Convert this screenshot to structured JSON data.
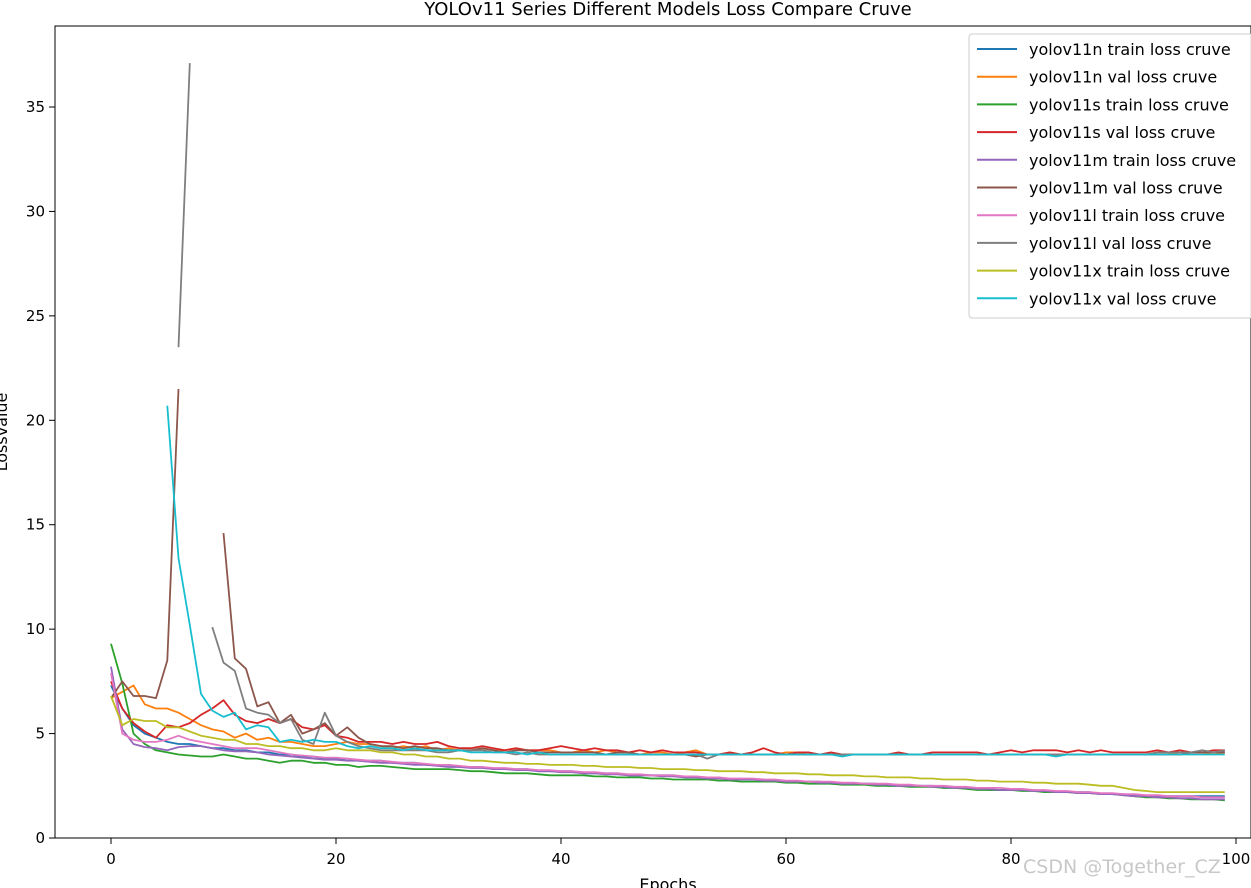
{
  "chart_data": {
    "type": "line",
    "title": "YOLOv11 Series Different Models Loss Compare Cruve",
    "xlabel": "Epochs",
    "ylabel": "Lossvalue",
    "xlim": [
      -4.5,
      100
    ],
    "ylim": [
      0,
      39
    ],
    "xticks": [
      0,
      20,
      40,
      60,
      80,
      100
    ],
    "yticks": [
      0,
      5,
      10,
      15,
      20,
      25,
      30,
      35
    ],
    "grid": false,
    "legend": "top-right",
    "series": [
      {
        "name": "yolov11n train loss cruve",
        "color": "#1f77b4",
        "values": [
          7.3,
          6.2,
          5.4,
          5.0,
          4.8,
          4.6,
          4.5,
          4.5,
          4.4,
          4.3,
          4.3,
          4.2,
          4.2,
          4.1,
          4.1,
          4.0,
          4.0,
          3.9,
          3.9,
          3.8,
          3.8,
          3.8,
          3.7,
          3.7,
          3.7,
          3.6,
          3.6,
          3.6,
          3.5,
          3.5,
          3.5,
          3.4,
          3.4,
          3.4,
          3.3,
          3.3,
          3.3,
          3.3,
          3.2,
          3.2,
          3.2,
          3.2,
          3.1,
          3.1,
          3.1,
          3.1,
          3.0,
          3.0,
          3.0,
          3.0,
          3.0,
          2.9,
          2.9,
          2.9,
          2.9,
          2.8,
          2.8,
          2.8,
          2.8,
          2.7,
          2.7,
          2.7,
          2.7,
          2.7,
          2.6,
          2.6,
          2.6,
          2.6,
          2.6,
          2.5,
          2.5,
          2.5,
          2.5,
          2.5,
          2.4,
          2.4,
          2.4,
          2.4,
          2.3,
          2.3,
          2.3,
          2.3,
          2.3,
          2.2,
          2.2,
          2.2,
          2.2,
          2.2,
          2.1,
          2.1,
          2.1,
          2.0,
          2.0,
          2.0,
          2.0,
          2.0,
          2.0,
          2.0,
          2.0,
          2.0
        ]
      },
      {
        "name": "yolov11n val loss cruve",
        "color": "#ff7f0e",
        "values": [
          6.7,
          7.0,
          7.3,
          6.4,
          6.2,
          6.2,
          6.0,
          5.7,
          5.4,
          5.2,
          5.1,
          4.8,
          5.0,
          4.7,
          4.8,
          4.6,
          4.6,
          4.5,
          4.4,
          4.4,
          4.5,
          4.6,
          4.5,
          4.5,
          4.4,
          4.3,
          4.4,
          4.3,
          4.4,
          4.2,
          4.3,
          4.2,
          4.2,
          4.3,
          4.2,
          4.2,
          4.3,
          4.2,
          4.2,
          4.2,
          4.1,
          4.1,
          4.2,
          4.1,
          4.2,
          4.1,
          4.1,
          4.0,
          4.1,
          4.1,
          4.0,
          4.1,
          4.2,
          4.0,
          4.0,
          4.1,
          4.0,
          4.0,
          4.0,
          4.0,
          4.1,
          4.1,
          4.0,
          4.0,
          4.0,
          4.0,
          4.0,
          4.0,
          4.0,
          4.0,
          4.0,
          4.0,
          4.0,
          4.0,
          4.0,
          4.0,
          4.0,
          4.0,
          4.0,
          4.0,
          4.0,
          4.0,
          4.0,
          4.0,
          4.0,
          4.0,
          4.0,
          4.0,
          4.0,
          4.0,
          4.0,
          4.0,
          4.0,
          4.1,
          4.1,
          4.0,
          4.1,
          4.1,
          4.0,
          4.1
        ]
      },
      {
        "name": "yolov11s train loss cruve",
        "color": "#2ca02c",
        "values": [
          9.3,
          7.4,
          5.0,
          4.5,
          4.2,
          4.1,
          4.0,
          3.95,
          3.9,
          3.9,
          4.0,
          3.9,
          3.8,
          3.8,
          3.7,
          3.6,
          3.7,
          3.7,
          3.6,
          3.6,
          3.5,
          3.5,
          3.4,
          3.45,
          3.45,
          3.4,
          3.35,
          3.3,
          3.3,
          3.3,
          3.3,
          3.25,
          3.2,
          3.2,
          3.15,
          3.1,
          3.1,
          3.1,
          3.05,
          3.0,
          3.0,
          3.0,
          3.0,
          2.95,
          2.95,
          2.9,
          2.9,
          2.9,
          2.85,
          2.85,
          2.8,
          2.8,
          2.8,
          2.8,
          2.75,
          2.75,
          2.7,
          2.7,
          2.7,
          2.7,
          2.65,
          2.65,
          2.6,
          2.6,
          2.6,
          2.55,
          2.55,
          2.55,
          2.5,
          2.5,
          2.5,
          2.45,
          2.45,
          2.45,
          2.4,
          2.4,
          2.35,
          2.3,
          2.3,
          2.3,
          2.3,
          2.25,
          2.25,
          2.2,
          2.2,
          2.2,
          2.15,
          2.15,
          2.1,
          2.1,
          2.05,
          2.0,
          1.95,
          1.95,
          1.9,
          1.9,
          1.85,
          1.85,
          1.85,
          1.8
        ]
      },
      {
        "name": "yolov11s val loss cruve",
        "color": "#d62728",
        "values": [
          7.5,
          6.2,
          5.5,
          5.1,
          4.8,
          5.4,
          5.3,
          5.5,
          5.9,
          6.2,
          6.6,
          5.9,
          5.6,
          5.5,
          5.7,
          5.5,
          5.7,
          5.3,
          5.2,
          5.4,
          4.9,
          4.8,
          4.6,
          4.6,
          4.6,
          4.5,
          4.6,
          4.5,
          4.5,
          4.6,
          4.4,
          4.3,
          4.3,
          4.4,
          4.3,
          4.2,
          4.3,
          4.2,
          4.2,
          4.3,
          4.4,
          4.3,
          4.2,
          4.3,
          4.2,
          4.2,
          4.1,
          4.2,
          4.1,
          4.2,
          4.1,
          4.1,
          4.1,
          4.0,
          4.0,
          4.1,
          4.0,
          4.1,
          4.3,
          4.1,
          4.0,
          4.1,
          4.1,
          4.0,
          4.1,
          4.0,
          4.0,
          4.0,
          4.0,
          4.0,
          4.1,
          4.0,
          4.0,
          4.1,
          4.1,
          4.1,
          4.1,
          4.1,
          4.0,
          4.1,
          4.2,
          4.1,
          4.2,
          4.2,
          4.2,
          4.1,
          4.2,
          4.1,
          4.2,
          4.1,
          4.1,
          4.1,
          4.1,
          4.2,
          4.1,
          4.2,
          4.1,
          4.1,
          4.2,
          4.2
        ]
      },
      {
        "name": "yolov11m train loss cruve",
        "color": "#9467bd",
        "values": [
          8.2,
          5.2,
          4.5,
          4.35,
          4.3,
          4.2,
          4.35,
          4.4,
          4.4,
          4.3,
          4.2,
          4.15,
          4.15,
          4.1,
          4.0,
          3.95,
          3.9,
          3.85,
          3.8,
          3.75,
          3.75,
          3.7,
          3.7,
          3.65,
          3.6,
          3.6,
          3.55,
          3.5,
          3.5,
          3.45,
          3.4,
          3.4,
          3.35,
          3.35,
          3.3,
          3.3,
          3.25,
          3.25,
          3.2,
          3.2,
          3.15,
          3.15,
          3.1,
          3.1,
          3.05,
          3.05,
          3.0,
          3.0,
          3.0,
          2.95,
          2.95,
          2.9,
          2.9,
          2.85,
          2.85,
          2.8,
          2.8,
          2.8,
          2.75,
          2.75,
          2.7,
          2.7,
          2.7,
          2.65,
          2.65,
          2.6,
          2.6,
          2.6,
          2.55,
          2.55,
          2.5,
          2.5,
          2.5,
          2.45,
          2.45,
          2.4,
          2.4,
          2.35,
          2.35,
          2.3,
          2.3,
          2.3,
          2.25,
          2.25,
          2.2,
          2.2,
          2.15,
          2.15,
          2.1,
          2.1,
          2.05,
          2.0,
          2.0,
          1.95,
          1.95,
          1.9,
          1.9,
          1.85,
          1.85,
          1.85
        ]
      },
      {
        "name": "yolov11m val loss cruve",
        "color": "#8c564b",
        "values": [
          6.7,
          7.5,
          6.8,
          6.8,
          6.7,
          8.5,
          21.5,
          null,
          null,
          null,
          14.6,
          8.6,
          8.1,
          6.3,
          6.5,
          5.5,
          5.9,
          5.0,
          5.2,
          5.5,
          4.9,
          5.3,
          4.8,
          4.5,
          4.4,
          4.4,
          4.3,
          4.4,
          4.3,
          4.3,
          4.2,
          4.2,
          4.2,
          4.3,
          4.2,
          4.1,
          4.2,
          4.2,
          4.1,
          4.1,
          4.1,
          4.1,
          4.1,
          4.1,
          4.0,
          4.1,
          4.1,
          4.0,
          4.0,
          4.0,
          4.0,
          4.0,
          3.9,
          4.0,
          4.0,
          4.0,
          4.0,
          4.0,
          4.0,
          4.0,
          4.0,
          4.0,
          4.0,
          4.0,
          4.0,
          4.0,
          4.0,
          4.0,
          4.0,
          4.0,
          4.0,
          4.0,
          4.0,
          4.0,
          4.0,
          4.0,
          4.0,
          4.0,
          4.0,
          4.0,
          4.0,
          4.0,
          4.0,
          4.0,
          4.0,
          4.0,
          4.0,
          4.0,
          4.0,
          4.0,
          4.0,
          4.0,
          4.0,
          4.0,
          4.0,
          4.0,
          4.1,
          4.1,
          4.1,
          4.1
        ]
      },
      {
        "name": "yolov11l train loss cruve",
        "color": "#e377c2",
        "values": [
          7.9,
          5.0,
          4.7,
          4.6,
          4.6,
          4.7,
          4.9,
          4.7,
          4.6,
          4.5,
          4.4,
          4.3,
          4.3,
          4.3,
          4.2,
          4.1,
          4.0,
          3.95,
          3.9,
          3.85,
          3.85,
          3.8,
          3.75,
          3.7,
          3.7,
          3.65,
          3.6,
          3.6,
          3.55,
          3.5,
          3.5,
          3.45,
          3.4,
          3.4,
          3.35,
          3.35,
          3.3,
          3.3,
          3.25,
          3.25,
          3.2,
          3.2,
          3.15,
          3.15,
          3.1,
          3.1,
          3.05,
          3.05,
          3.0,
          3.0,
          3.0,
          2.95,
          2.95,
          2.9,
          2.9,
          2.85,
          2.85,
          2.85,
          2.8,
          2.8,
          2.75,
          2.75,
          2.7,
          2.7,
          2.7,
          2.65,
          2.65,
          2.6,
          2.6,
          2.6,
          2.55,
          2.55,
          2.5,
          2.5,
          2.5,
          2.45,
          2.45,
          2.4,
          2.4,
          2.4,
          2.35,
          2.35,
          2.3,
          2.3,
          2.25,
          2.25,
          2.2,
          2.2,
          2.15,
          2.15,
          2.1,
          2.1,
          2.05,
          2.05,
          2.0,
          2.0,
          2.0,
          1.95,
          1.95,
          1.95
        ]
      },
      {
        "name": "yolov11l val loss cruve",
        "color": "#7f7f7f",
        "values": [
          null,
          null,
          null,
          null,
          null,
          null,
          23.5,
          37.1,
          null,
          10.1,
          8.4,
          8.0,
          6.2,
          6.0,
          5.9,
          5.5,
          5.7,
          4.7,
          4.5,
          6.0,
          4.9,
          4.6,
          4.4,
          4.3,
          4.2,
          4.2,
          4.2,
          4.2,
          4.2,
          4.1,
          4.1,
          4.2,
          4.2,
          4.2,
          4.1,
          4.1,
          4.0,
          4.1,
          4.0,
          4.0,
          4.0,
          4.0,
          4.0,
          4.0,
          4.0,
          4.0,
          4.0,
          4.0,
          4.0,
          4.0,
          4.0,
          4.0,
          4.0,
          3.8,
          4.0,
          4.0,
          4.0,
          4.0,
          4.0,
          4.0,
          4.0,
          4.0,
          4.0,
          4.0,
          4.0,
          4.0,
          4.0,
          4.0,
          4.0,
          4.0,
          4.0,
          4.0,
          4.0,
          4.0,
          4.0,
          4.0,
          4.0,
          4.0,
          4.0,
          4.0,
          4.0,
          4.0,
          4.0,
          4.0,
          4.0,
          4.0,
          4.0,
          4.0,
          4.0,
          4.0,
          4.0,
          4.0,
          4.0,
          4.1,
          4.1,
          4.1,
          4.1,
          4.2,
          4.1,
          4.2
        ]
      },
      {
        "name": "yolov11x train loss cruve",
        "color": "#bcbd22",
        "values": [
          6.8,
          5.4,
          5.7,
          5.6,
          5.6,
          5.3,
          5.3,
          5.1,
          4.9,
          4.8,
          4.7,
          4.7,
          4.5,
          4.5,
          4.4,
          4.4,
          4.3,
          4.3,
          4.2,
          4.2,
          4.3,
          4.2,
          4.2,
          4.2,
          4.1,
          4.1,
          4.0,
          4.0,
          3.9,
          3.9,
          3.8,
          3.8,
          3.7,
          3.7,
          3.65,
          3.6,
          3.6,
          3.55,
          3.55,
          3.5,
          3.5,
          3.5,
          3.45,
          3.45,
          3.4,
          3.4,
          3.4,
          3.35,
          3.35,
          3.3,
          3.3,
          3.3,
          3.25,
          3.25,
          3.2,
          3.2,
          3.2,
          3.15,
          3.15,
          3.1,
          3.1,
          3.1,
          3.05,
          3.05,
          3.0,
          3.0,
          3.0,
          2.95,
          2.95,
          2.9,
          2.9,
          2.9,
          2.85,
          2.85,
          2.8,
          2.8,
          2.8,
          2.75,
          2.75,
          2.7,
          2.7,
          2.7,
          2.65,
          2.65,
          2.6,
          2.6,
          2.6,
          2.55,
          2.5,
          2.5,
          2.4,
          2.3,
          2.25,
          2.2,
          2.2,
          2.2,
          2.2,
          2.2,
          2.2,
          2.2
        ]
      },
      {
        "name": "yolov11x val loss cruve",
        "color": "#17becf",
        "values": [
          null,
          null,
          null,
          null,
          null,
          20.7,
          13.4,
          10.2,
          6.9,
          6.1,
          5.8,
          6.0,
          5.2,
          5.4,
          5.3,
          4.6,
          4.7,
          4.6,
          4.7,
          4.6,
          4.6,
          4.4,
          4.3,
          4.4,
          4.3,
          4.3,
          4.2,
          4.3,
          4.2,
          4.2,
          4.2,
          4.2,
          4.1,
          4.1,
          4.1,
          4.1,
          4.1,
          4.0,
          4.1,
          4.0,
          4.0,
          4.0,
          4.0,
          4.0,
          4.0,
          4.0,
          4.0,
          4.0,
          4.0,
          4.0,
          4.0,
          4.0,
          4.0,
          4.0,
          4.0,
          4.0,
          4.0,
          4.0,
          4.0,
          4.0,
          4.0,
          4.0,
          4.0,
          4.0,
          4.0,
          3.9,
          4.0,
          4.0,
          4.0,
          4.0,
          4.0,
          4.0,
          4.0,
          4.0,
          4.0,
          4.0,
          4.0,
          4.0,
          4.0,
          4.0,
          4.0,
          4.0,
          4.0,
          4.0,
          3.9,
          4.0,
          4.0,
          4.0,
          4.0,
          4.0,
          4.0,
          4.0,
          4.0,
          4.0,
          4.0,
          4.0,
          4.0,
          4.0,
          4.0,
          4.0
        ]
      }
    ]
  },
  "watermark": "CSDN @Together_CZ"
}
